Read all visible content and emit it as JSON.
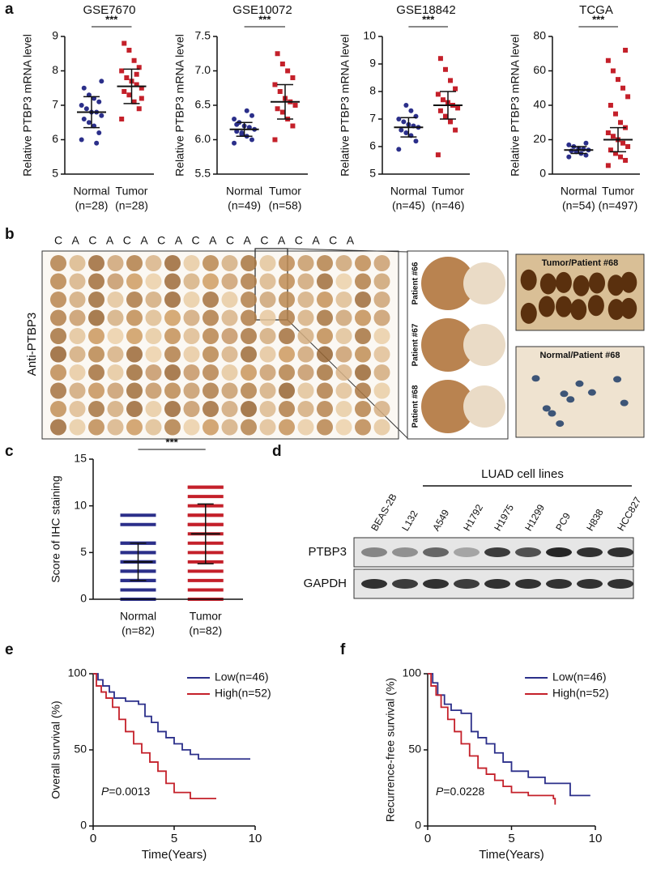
{
  "panel_labels": [
    "a",
    "b",
    "c",
    "d",
    "e",
    "f"
  ],
  "chart_data": [
    {
      "type": "dotplot",
      "title": "GSE7670",
      "ylabel": "Relative PTBP3 mRNA level",
      "categories": [
        "Normal",
        "Tumor"
      ],
      "sublabels": [
        "(n=28)",
        "(n=28)"
      ],
      "significance": "***",
      "ylim": [
        5,
        9
      ],
      "yticks": [
        5,
        6,
        7,
        8,
        9
      ],
      "groups": [
        {
          "color": "#2b2f8a",
          "marker": "circle",
          "mean": 6.8,
          "sd": 0.45,
          "values": [
            6.0,
            6.2,
            6.4,
            6.5,
            6.6,
            6.7,
            6.8,
            6.8,
            6.9,
            7.0,
            7.1,
            7.2,
            7.3,
            7.5,
            7.7,
            5.9
          ]
        },
        {
          "color": "#c4202a",
          "marker": "square",
          "mean": 7.55,
          "sd": 0.5,
          "values": [
            6.6,
            6.9,
            7.1,
            7.3,
            7.4,
            7.5,
            7.6,
            7.7,
            7.8,
            8.0,
            8.1,
            8.3,
            8.6,
            8.8,
            7.2,
            7.9
          ]
        }
      ]
    },
    {
      "type": "dotplot",
      "title": "GSE10072",
      "ylabel": "Relative PTBP3 mRNA level",
      "categories": [
        "Normal",
        "Tumor"
      ],
      "sublabels": [
        "(n=49)",
        "(n=58)"
      ],
      "significance": "***",
      "ylim": [
        5.5,
        7.5
      ],
      "yticks": [
        5.5,
        {
          "value": 6,
          "label": "6.0"
        },
        6.5,
        {
          "value": 7,
          "label": "7.0"
        },
        7.5
      ],
      "groups": [
        {
          "color": "#2b2f8a",
          "marker": "circle",
          "mean": 6.15,
          "sd": 0.1,
          "values": [
            5.95,
            6.0,
            6.05,
            6.1,
            6.12,
            6.15,
            6.18,
            6.2,
            6.25,
            6.3,
            6.35,
            6.42,
            6.08,
            6.22
          ]
        },
        {
          "color": "#c4202a",
          "marker": "square",
          "mean": 6.55,
          "sd": 0.25,
          "values": [
            6.0,
            6.2,
            6.3,
            6.4,
            6.45,
            6.5,
            6.55,
            6.6,
            6.7,
            6.8,
            6.9,
            7.0,
            7.1,
            7.25
          ]
        }
      ]
    },
    {
      "type": "dotplot",
      "title": "GSE18842",
      "ylabel": "Relative PTBP3 mRNA level",
      "categories": [
        "Normal",
        "Tumor"
      ],
      "sublabels": [
        "(n=45)",
        "(n=46)"
      ],
      "significance": "***",
      "ylim": [
        5,
        10
      ],
      "yticks": [
        5,
        6,
        7,
        8,
        9,
        10
      ],
      "groups": [
        {
          "color": "#2b2f8a",
          "marker": "circle",
          "mean": 6.7,
          "sd": 0.35,
          "values": [
            5.9,
            6.2,
            6.4,
            6.5,
            6.6,
            6.7,
            6.75,
            6.8,
            6.9,
            7.0,
            7.1,
            7.3,
            7.5
          ]
        },
        {
          "color": "#c4202a",
          "marker": "square",
          "mean": 7.5,
          "sd": 0.5,
          "values": [
            5.7,
            6.6,
            6.9,
            7.1,
            7.3,
            7.4,
            7.5,
            7.6,
            7.7,
            7.9,
            8.1,
            8.4,
            8.8,
            9.2
          ]
        }
      ]
    },
    {
      "type": "dotplot",
      "title": "TCGA",
      "ylabel": "Relative PTBP3 mRNA level",
      "categories": [
        "Normal",
        "Tumor"
      ],
      "sublabels": [
        "(n=54)",
        "(n=497)"
      ],
      "significance": "***",
      "ylim": [
        0,
        80
      ],
      "yticks": [
        0,
        20,
        40,
        60,
        80
      ],
      "groups": [
        {
          "color": "#2b2f8a",
          "marker": "circle",
          "mean": 14,
          "sd": 2,
          "values": [
            10,
            11,
            12,
            13,
            13.5,
            14,
            14.5,
            15,
            16,
            17,
            18
          ]
        },
        {
          "color": "#c4202a",
          "marker": "square",
          "mean": 20,
          "sd": 7,
          "values": [
            5,
            8,
            10,
            12,
            14,
            16,
            18,
            20,
            22,
            24,
            27,
            30,
            35,
            40,
            45,
            50,
            55,
            60,
            66,
            72
          ]
        }
      ]
    },
    {
      "type": "dotplot",
      "ylabel": "Score of IHC staining",
      "categories": [
        "Normal",
        "Tumor"
      ],
      "sublabels": [
        "(n=82)",
        "(n=82)"
      ],
      "significance": "***",
      "ylim": [
        0,
        15
      ],
      "yticks": [
        0,
        5,
        10,
        15
      ],
      "groups": [
        {
          "color": "#2b2f8a",
          "marker": "bar",
          "mean": 4,
          "sd": 2,
          "values": [
            0,
            1,
            2,
            2,
            3,
            3,
            4,
            4,
            4,
            5,
            5,
            6,
            6,
            8,
            9
          ]
        },
        {
          "color": "#c4202a",
          "marker": "bar",
          "mean": 7,
          "sd": 3.2,
          "values": [
            0,
            1,
            2,
            3,
            4,
            5,
            6,
            7,
            8,
            8,
            9,
            9,
            10,
            11,
            12,
            12
          ]
        }
      ]
    },
    {
      "type": "km",
      "ylabel": "Overall survival (%)",
      "xlabel": "Time(Years)",
      "xlim": [
        0,
        10
      ],
      "xticks": [
        0,
        5,
        10
      ],
      "ylim": [
        0,
        100
      ],
      "yticks": [
        0,
        50,
        100
      ],
      "legend": "upper right",
      "annotation": {
        "italic": "P",
        "text": "=0.0013"
      },
      "series": [
        {
          "name": "Low(n=46)",
          "color": "#2b2f8a",
          "x": [
            0,
            0.3,
            0.6,
            1,
            1.3,
            2,
            2.8,
            3.2,
            3.6,
            4,
            4.5,
            5,
            5.5,
            6,
            6.5,
            9.7
          ],
          "values": [
            100,
            96,
            92,
            88,
            84,
            82,
            80,
            72,
            68,
            62,
            58,
            54,
            50,
            47,
            44,
            44
          ]
        },
        {
          "name": "High(n=52)",
          "color": "#c4202a",
          "x": [
            0,
            0.2,
            0.5,
            0.8,
            1.2,
            1.6,
            2,
            2.5,
            3,
            3.5,
            4,
            4.5,
            5,
            6,
            7.6
          ],
          "values": [
            100,
            92,
            88,
            84,
            78,
            70,
            62,
            54,
            48,
            42,
            36,
            28,
            22,
            18,
            18
          ]
        }
      ]
    },
    {
      "type": "km",
      "ylabel": "Recurrence-free survival (%)",
      "xlabel": "Time(Years)",
      "xlim": [
        0,
        10
      ],
      "xticks": [
        0,
        5,
        10
      ],
      "ylim": [
        0,
        100
      ],
      "yticks": [
        0,
        50,
        100
      ],
      "legend": "upper right",
      "annotation": {
        "italic": "P",
        "text": "=0.0228"
      },
      "series": [
        {
          "name": "Low(n=46)",
          "color": "#2b2f8a",
          "x": [
            0,
            0.3,
            0.6,
            1,
            1.4,
            2,
            2.6,
            3,
            3.5,
            4,
            4.5,
            5,
            6,
            7,
            8.5,
            9.7
          ],
          "values": [
            100,
            94,
            86,
            80,
            76,
            74,
            62,
            58,
            54,
            48,
            42,
            36,
            32,
            28,
            20,
            20
          ]
        },
        {
          "name": "High(n=52)",
          "color": "#c4202a",
          "x": [
            0,
            0.2,
            0.5,
            0.8,
            1.2,
            1.6,
            2,
            2.5,
            3,
            3.5,
            4,
            4.5,
            5,
            6,
            7.5,
            7.6
          ],
          "values": [
            100,
            92,
            86,
            78,
            70,
            62,
            54,
            46,
            38,
            34,
            30,
            26,
            22,
            20,
            18,
            14
          ]
        }
      ]
    }
  ],
  "ihc": {
    "stain_label": "Anti-PTBP3",
    "columns": [
      "C",
      "A",
      "C",
      "A",
      "C",
      "A",
      "C",
      "A",
      "C",
      "A",
      "C",
      "A",
      "C",
      "A",
      "C",
      "A",
      "C",
      "A"
    ],
    "patients": [
      "Patient #66",
      "Patient #67",
      "Patient #68"
    ],
    "micro_titles": [
      "Tumor/Patient #68",
      "Normal/Patient #68"
    ]
  },
  "blot": {
    "group_label": "LUAD cell lines",
    "lanes": [
      "BEAS-2B",
      "L132",
      "A549",
      "H1792",
      "H1975",
      "H1299",
      "PC9",
      "H838",
      "HCC827"
    ],
    "rows": [
      "PTBP3",
      "GAPDH"
    ]
  }
}
